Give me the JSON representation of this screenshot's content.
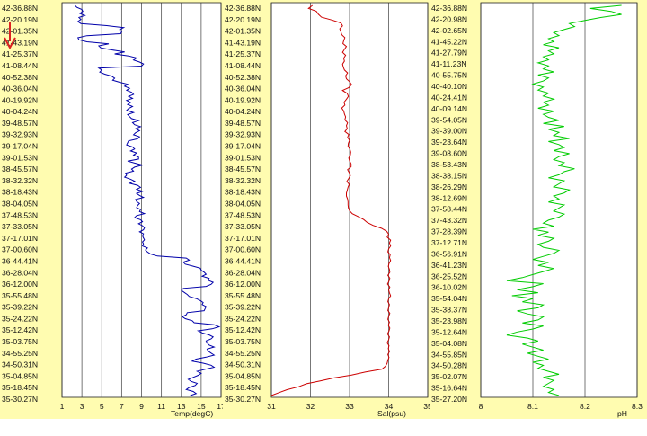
{
  "chart_data": [
    {
      "type": "line",
      "xlabel": "Temp(degC)",
      "xlim": [
        1,
        17
      ],
      "xticks": [
        "1",
        "3",
        "5",
        "7",
        "9",
        "11",
        "13",
        "15",
        "17"
      ],
      "color": "#0000aa",
      "ylabels": [
        "42-36.88N",
        "42-20.19N",
        "42-01.35N",
        "41-43.19N",
        "41-25.37N",
        "41-08.44N",
        "40-52.38N",
        "40-36.04N",
        "40-19.92N",
        "40-04.24N",
        "39-48.57N",
        "39-32.93N",
        "39-17.04N",
        "39-01.53N",
        "38-45.57N",
        "38-32.32N",
        "38-18.43N",
        "38-04.05N",
        "37-48.53N",
        "37-33.05N",
        "37-17.01N",
        "37-00.60N",
        "36-44.41N",
        "36-28.04N",
        "36-12.00N",
        "35-55.48N",
        "35-39.22N",
        "35-24.22N",
        "35-12.42N",
        "35-03.75N",
        "34-55.25N",
        "34-50.31N",
        "35-04.85N",
        "35-18.45N",
        "35-30.27N"
      ],
      "x": [
        2.3,
        2.5,
        3.0,
        3.1,
        2.8,
        3.3,
        2.7,
        2.9,
        2.6,
        2.9,
        5.5,
        7.2,
        6.8,
        7.0,
        6.9,
        3.5,
        2.6,
        2.7,
        3.5,
        5.7,
        4.7,
        4.9,
        6.0,
        7.3,
        6.3,
        7.7,
        8.5,
        8.2,
        8.8,
        9.2,
        9.0,
        4.7,
        5.0,
        4.8,
        5.3,
        6.0,
        6.3,
        6.1,
        6.8,
        7.6,
        7.3,
        7.8,
        7.5,
        8.0,
        8.2,
        7.7,
        8.1,
        7.5,
        7.9,
        7.6,
        8.1,
        7.7,
        7.5,
        8.2,
        7.6,
        7.8,
        8.0,
        8.7,
        8.1,
        8.3,
        8.9,
        8.4,
        8.8,
        8.4,
        8.2,
        8.8,
        8.6,
        7.7,
        7.6,
        7.5,
        8.1,
        8.3,
        7.9,
        8.5,
        8.2,
        8.7,
        8.7,
        7.6,
        8.3,
        9.1,
        8.3,
        8.0,
        8.2,
        7.4,
        7.5,
        7.3,
        7.9,
        8.3,
        7.8,
        8.6,
        8.9,
        8.5,
        9.1,
        8.5,
        8.8,
        9.2,
        8.4,
        8.5,
        8.8,
        8.6,
        8.5,
        8.9,
        8.8,
        9.3,
        8.5,
        8.3,
        8.9,
        9.1,
        8.7,
        9.1,
        9.3,
        9.2,
        8.8,
        9.2,
        9.1,
        9.2,
        9.3,
        9.1,
        9.2,
        9.1,
        9.6,
        9.4,
        9.6,
        9.9,
        10.6,
        13.5,
        13.8,
        13.2,
        13.4,
        14.2,
        14.9,
        15.0,
        15.3,
        15.5,
        15.1,
        15.8,
        15.7,
        16.2,
        16.0,
        15.5,
        13.2,
        13.0,
        13.3,
        13.6,
        13.8,
        14.5,
        14.9,
        15.2,
        15.1,
        15.5,
        15.4,
        15.3,
        13.6,
        13.5,
        13.1,
        13.4,
        14.1,
        14.3,
        16.3,
        16.8,
        16.1,
        14.7,
        15.1,
        15.8,
        16.2,
        16.0,
        15.5,
        15.6,
        15.8,
        16.3,
        15.6,
        15.7,
        16.0,
        16.3,
        15.5,
        14.5,
        14.1,
        15.2,
        16.0,
        16.3,
        15.4,
        14.6,
        15.0,
        14.7,
        14.2,
        13.7,
        14.0,
        14.6,
        14.4,
        13.8,
        13.5,
        14.2,
        14.5,
        13.9
      ]
    },
    {
      "type": "line",
      "xlabel": "Sal(psu)",
      "xlim": [
        31,
        35
      ],
      "xticks": [
        "31",
        "32",
        "33",
        "34",
        "35"
      ],
      "color": "#cc0000",
      "ylabels": [
        "42-36.88N",
        "42-20.19N",
        "42-01.35N",
        "41-43.19N",
        "41-25.37N",
        "41-08.44N",
        "40-52.38N",
        "40-36.04N",
        "40-19.92N",
        "40-04.24N",
        "39-48.57N",
        "39-32.93N",
        "39-17.04N",
        "39-01.53N",
        "38-45.57N",
        "38-32.32N",
        "38-18.43N",
        "38-04.05N",
        "37-48.53N",
        "37-33.05N",
        "37-17.01N",
        "37-00.60N",
        "36-44.41N",
        "36-28.04N",
        "36-12.00N",
        "35-55.48N",
        "35-39.22N",
        "35-24.22N",
        "35-12.42N",
        "35-03.75N",
        "34-55.25N",
        "34-50.31N",
        "35-04.85N",
        "35-18.45N",
        "35-30.27N"
      ],
      "x": [
        32.05,
        31.95,
        32.15,
        32.2,
        32.28,
        32.55,
        32.78,
        32.82,
        32.75,
        32.78,
        32.8,
        32.88,
        32.85,
        32.83,
        32.92,
        32.87,
        32.82,
        32.9,
        32.85,
        32.87,
        32.82,
        32.84,
        32.87,
        32.95,
        32.9,
        32.92,
        33.0,
        33.05,
        32.98,
        32.82,
        32.94,
        32.97,
        32.92,
        32.86,
        32.88,
        32.8,
        32.85,
        32.87,
        32.9,
        32.88,
        32.95,
        32.92,
        32.94,
        32.88,
        32.98,
        32.95,
        33.0,
        32.97,
        32.96,
        33.01,
        33.03,
        33.02,
        32.98,
        33.0,
        33.04,
        33.04,
        32.95,
        32.99,
        33.02,
        32.98,
        32.93,
        32.99,
        32.96,
        32.94,
        32.92,
        32.92,
        32.95,
        32.96,
        32.96,
        32.97,
        33.0,
        33.07,
        33.22,
        33.36,
        33.45,
        33.6,
        33.82,
        33.95,
        34.0,
        33.96,
        34.05,
        34.02,
        34.05,
        34.0,
        33.98,
        34.04,
        34.02,
        34.05,
        34.01,
        33.99,
        34.02,
        34.03,
        33.98,
        34.03,
        34.01,
        33.97,
        34.03,
        34.0,
        34.02,
        34.05,
        34.0,
        33.98,
        34.02,
        34.0,
        33.98,
        34.03,
        34.0,
        33.98,
        34.02,
        33.99,
        34.03,
        34.01,
        33.97,
        34.02,
        34.0,
        33.96,
        34.01,
        33.99,
        34.02,
        33.98,
        34.01,
        33.98,
        33.96,
        33.92,
        33.83,
        33.4,
        33.05,
        32.6,
        32.25,
        31.9,
        31.7,
        31.4,
        31.2,
        31.0
      ]
    },
    {
      "type": "line",
      "xlabel": "pH",
      "xlim": [
        8,
        8.3
      ],
      "xticks": [
        "8",
        "8.1",
        "8.2",
        "8.3"
      ],
      "color": "#00cc00",
      "ylabels": [
        "42-36.88N",
        "42-20.98N",
        "42-02.65N",
        "41-45.22N",
        "41-27.79N",
        "41-11.23N",
        "40-55.75N",
        "40-40.10N",
        "40-24.41N",
        "40-09.14N",
        "39-54.05N",
        "39-39.00N",
        "39-23.64N",
        "39-08.60N",
        "38-53.43N",
        "38-38.15N",
        "38-26.29N",
        "38-12.69N",
        "37-58.44N",
        "37-43.32N",
        "37-28.39N",
        "37-12.71N",
        "36-56.91N",
        "36-41.23N",
        "36-25.52N",
        "36-10.02N",
        "35-54.04N",
        "35-38.37N",
        "35-23.98N",
        "35-12.64N",
        "35-04.08N",
        "34-55.85N",
        "34-50.28N",
        "35-02.07N",
        "35-16.64N",
        "35-27.20N"
      ],
      "x": [
        8.27,
        8.21,
        8.25,
        8.27,
        8.23,
        8.2,
        8.17,
        8.18,
        8.16,
        8.14,
        8.15,
        8.13,
        8.14,
        8.12,
        8.15,
        8.13,
        8.14,
        8.12,
        8.13,
        8.11,
        8.13,
        8.12,
        8.14,
        8.11,
        8.13,
        8.12,
        8.1,
        8.12,
        8.11,
        8.13,
        8.12,
        8.14,
        8.12,
        8.13,
        8.11,
        8.14,
        8.12,
        8.13,
        8.15,
        8.12,
        8.16,
        8.13,
        8.15,
        8.14,
        8.17,
        8.13,
        8.15,
        8.16,
        8.14,
        8.17,
        8.15,
        8.14,
        8.16,
        8.15,
        8.18,
        8.16,
        8.15,
        8.13,
        8.16,
        8.15,
        8.14,
        8.17,
        8.16,
        8.14,
        8.15,
        8.13,
        8.16,
        8.15,
        8.14,
        8.16,
        8.15,
        8.13,
        8.12,
        8.14,
        8.1,
        8.13,
        8.11,
        8.14,
        8.13,
        8.11,
        8.12,
        8.15,
        8.14,
        8.12,
        8.1,
        8.13,
        8.11,
        8.14,
        8.12,
        8.1,
        8.08,
        8.05,
        8.12,
        8.1,
        8.07,
        8.11,
        8.06,
        8.1,
        8.08,
        8.12,
        8.11,
        8.07,
        8.09,
        8.12,
        8.11,
        8.08,
        8.12,
        8.1,
        8.07,
        8.05,
        8.09,
        8.11,
        8.08,
        8.1,
        8.12,
        8.09,
        8.11,
        8.13,
        8.1,
        8.12,
        8.11,
        8.13,
        8.15,
        8.12,
        8.14,
        8.13,
        8.12,
        8.14,
        8.13,
        8.15
      ]
    }
  ],
  "annotations": {
    "arrow_color": "#dd2222",
    "panel_bg": "#fffcb0",
    "grid_color": "#555555"
  }
}
